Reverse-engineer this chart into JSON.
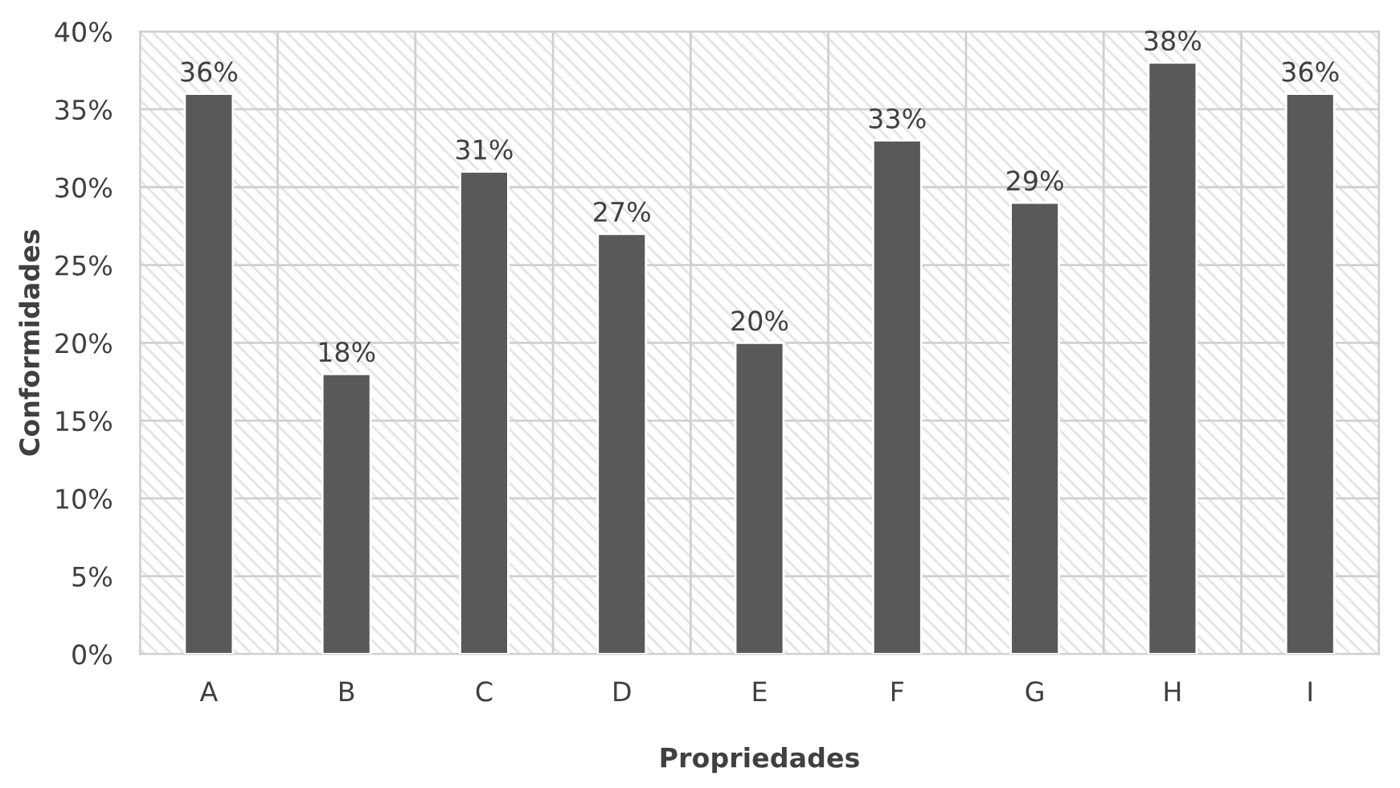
{
  "chart_data": {
    "type": "bar",
    "xlabel": "Propriedades",
    "ylabel": "Conformidades",
    "categories": [
      "A",
      "B",
      "C",
      "D",
      "E",
      "F",
      "G",
      "H",
      "I"
    ],
    "values": [
      36,
      18,
      31,
      27,
      20,
      33,
      29,
      38,
      36
    ],
    "value_labels": [
      "36%",
      "18%",
      "31%",
      "27%",
      "20%",
      "33%",
      "29%",
      "38%",
      "36%"
    ],
    "color": "#595959",
    "ylim": [
      0,
      40
    ],
    "yticks": [
      {
        "value": 0,
        "label": "0%"
      },
      {
        "value": 5,
        "label": "5%"
      },
      {
        "value": 10,
        "label": "10%"
      },
      {
        "value": 15,
        "label": "15%"
      },
      {
        "value": 20,
        "label": "20%"
      },
      {
        "value": 25,
        "label": "25%"
      },
      {
        "value": 30,
        "label": "30%"
      },
      {
        "value": 35,
        "label": "35%"
      },
      {
        "value": 40,
        "label": "40%"
      }
    ],
    "grid": true
  }
}
